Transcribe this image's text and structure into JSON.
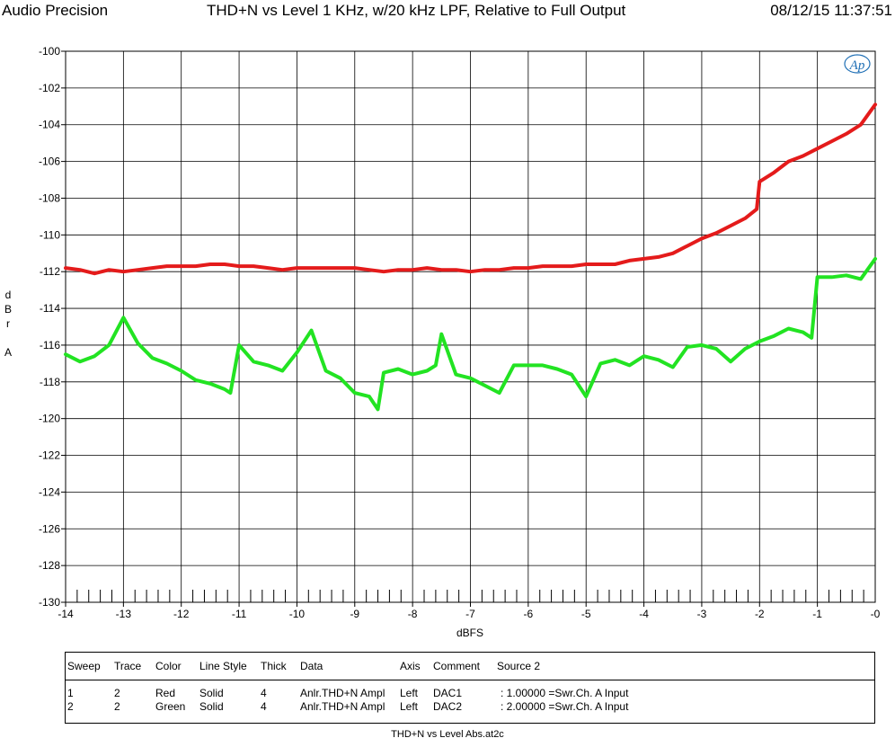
{
  "header": {
    "app_name": "Audio Precision",
    "title": "THD+N vs Level 1 KHz, w/20 kHz LPF, Relative to Full Output",
    "timestamp": "08/12/15 11:37:51"
  },
  "logo_text": "Ap",
  "colors": {
    "series1": "#e41b1b",
    "series2": "#22e322",
    "grid": "#000000"
  },
  "chart_data": {
    "type": "line",
    "title": "THD+N vs Level 1 KHz, w/20 kHz LPF, Relative to Full Output",
    "xlabel": "dBFS",
    "ylabel": "d B r A",
    "xlim": [
      -14,
      0
    ],
    "ylim": [
      -130,
      -100
    ],
    "x_ticks": [
      "-14",
      "-13",
      "-12",
      "-11",
      "-10",
      "-9",
      "-8",
      "-7",
      "-6",
      "-5",
      "-4",
      "-3",
      "-2",
      "-1",
      "-0"
    ],
    "y_ticks": [
      "-100",
      "-102",
      "-104",
      "-106",
      "-108",
      "-110",
      "-112",
      "-114",
      "-116",
      "-118",
      "-120",
      "-122",
      "-124",
      "-126",
      "-128",
      "-130"
    ],
    "grid": true,
    "series": [
      {
        "name": "Red",
        "color": "#e41b1b",
        "x": [
          -14,
          -13.75,
          -13.5,
          -13.25,
          -13,
          -12.75,
          -12.5,
          -12.25,
          -12,
          -11.75,
          -11.5,
          -11.25,
          -11,
          -10.75,
          -10.5,
          -10.25,
          -10,
          -9.75,
          -9.5,
          -9.25,
          -9,
          -8.75,
          -8.5,
          -8.25,
          -8,
          -7.75,
          -7.5,
          -7.25,
          -7,
          -6.75,
          -6.5,
          -6.25,
          -6,
          -5.75,
          -5.5,
          -5.25,
          -5,
          -4.75,
          -4.5,
          -4.25,
          -4,
          -3.75,
          -3.5,
          -3.25,
          -3,
          -2.75,
          -2.5,
          -2.25,
          -2.05,
          -2,
          -1.75,
          -1.5,
          -1.25,
          -1,
          -0.75,
          -0.5,
          -0.25,
          0
        ],
        "y": [
          -111.8,
          -111.9,
          -112.1,
          -111.9,
          -112,
          -111.9,
          -111.8,
          -111.7,
          -111.7,
          -111.7,
          -111.6,
          -111.6,
          -111.7,
          -111.7,
          -111.8,
          -111.9,
          -111.8,
          -111.8,
          -111.8,
          -111.8,
          -111.8,
          -111.9,
          -112,
          -111.9,
          -111.9,
          -111.8,
          -111.9,
          -111.9,
          -112,
          -111.9,
          -111.9,
          -111.8,
          -111.8,
          -111.7,
          -111.7,
          -111.7,
          -111.6,
          -111.6,
          -111.6,
          -111.4,
          -111.3,
          -111.2,
          -111,
          -110.6,
          -110.2,
          -109.9,
          -109.5,
          -109.1,
          -108.6,
          -107.1,
          -106.6,
          -106,
          -105.7,
          -105.3,
          -104.9,
          -104.5,
          -104,
          -102.9
        ]
      },
      {
        "name": "Green",
        "color": "#22e322",
        "x": [
          -14,
          -13.75,
          -13.5,
          -13.25,
          -13,
          -12.75,
          -12.5,
          -12.25,
          -12,
          -11.75,
          -11.5,
          -11.25,
          -11.15,
          -11,
          -10.75,
          -10.5,
          -10.25,
          -10,
          -9.75,
          -9.5,
          -9.25,
          -9,
          -8.75,
          -8.6,
          -8.5,
          -8.25,
          -8,
          -7.75,
          -7.6,
          -7.5,
          -7.25,
          -7,
          -6.75,
          -6.5,
          -6.25,
          -6,
          -5.75,
          -5.5,
          -5.25,
          -5,
          -4.75,
          -4.5,
          -4.25,
          -4,
          -3.75,
          -3.5,
          -3.25,
          -3,
          -2.75,
          -2.5,
          -2.25,
          -2,
          -1.75,
          -1.5,
          -1.25,
          -1.1,
          -1,
          -0.75,
          -0.5,
          -0.25,
          0
        ],
        "y": [
          -116.5,
          -116.9,
          -116.6,
          -116,
          -114.5,
          -115.9,
          -116.7,
          -117,
          -117.4,
          -117.9,
          -118.1,
          -118.4,
          -118.6,
          -116,
          -116.9,
          -117.1,
          -117.4,
          -116.4,
          -115.2,
          -117.4,
          -117.8,
          -118.6,
          -118.8,
          -119.5,
          -117.5,
          -117.3,
          -117.6,
          -117.4,
          -117.1,
          -115.4,
          -117.6,
          -117.8,
          -118.2,
          -118.6,
          -117.1,
          -117.1,
          -117.1,
          -117.3,
          -117.6,
          -118.8,
          -117,
          -116.8,
          -117.1,
          -116.6,
          -116.8,
          -117.2,
          -116.1,
          -116,
          -116.2,
          -116.9,
          -116.2,
          -115.8,
          -115.5,
          -115.1,
          -115.3,
          -115.6,
          -112.3,
          -112.3,
          -112.2,
          -112.4,
          -111.3
        ]
      }
    ]
  },
  "legend": {
    "headers": [
      "Sweep",
      "Trace",
      "Color",
      "Line Style",
      "Thick",
      "Data",
      "Axis",
      "Comment",
      "Source 2"
    ],
    "rows": [
      [
        "1",
        "2",
        "Red",
        "Solid",
        "4",
        "Anlr.THD+N Ampl",
        "Left",
        "DAC1",
        ": 1.00000  =Swr.Ch. A Input"
      ],
      [
        "2",
        "2",
        "Green",
        "Solid",
        "4",
        "Anlr.THD+N Ampl",
        "Left",
        "DAC2",
        ": 2.00000  =Swr.Ch. A Input"
      ]
    ]
  },
  "footer": "THD+N vs Level Abs.at2c"
}
